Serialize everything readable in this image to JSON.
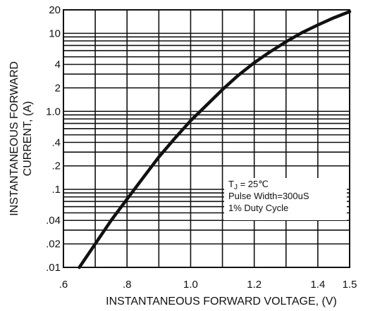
{
  "chart_data": {
    "type": "line",
    "xlabel": "INSTANTANEOUS FORWARD VOLTAGE, (V)",
    "ylabel_line1": "INSTANTANEOUS FORWARD",
    "ylabel_line2": "CURRENT, (A)",
    "xlim": [
      0.6,
      1.5
    ],
    "ylim": [
      0.01,
      20
    ],
    "yscale": "log",
    "grid": true,
    "x_ticks": [
      {
        "value": 0.6,
        "label": ".6"
      },
      {
        "value": 0.8,
        "label": ".8"
      },
      {
        "value": 1.0,
        "label": "1.0"
      },
      {
        "value": 1.2,
        "label": "1.2"
      },
      {
        "value": 1.4,
        "label": "1.4"
      },
      {
        "value": 1.5,
        "label": "1.5"
      }
    ],
    "y_ticks": [
      {
        "value": 20,
        "label": "20"
      },
      {
        "value": 10,
        "label": "10"
      },
      {
        "value": 4,
        "label": "4"
      },
      {
        "value": 2,
        "label": "2"
      },
      {
        "value": 1.0,
        "label": "1.0"
      },
      {
        "value": 0.4,
        "label": ".4"
      },
      {
        "value": 0.2,
        "label": ".2"
      },
      {
        "value": 0.1,
        "label": ".1"
      },
      {
        "value": 0.04,
        "label": ".04"
      },
      {
        "value": 0.02,
        "label": ".02"
      },
      {
        "value": 0.01,
        "label": ".01"
      }
    ],
    "x_gridlines": [
      0.7,
      0.8,
      0.9,
      1.0,
      1.1,
      1.2,
      1.3,
      1.4
    ],
    "y_gridlines": [
      0.02,
      0.03,
      0.04,
      0.05,
      0.06,
      0.07,
      0.08,
      0.09,
      0.1,
      0.2,
      0.3,
      0.4,
      0.5,
      0.6,
      0.7,
      0.8,
      0.9,
      1,
      2,
      3,
      4,
      5,
      6,
      7,
      8,
      9,
      10
    ],
    "series": [
      {
        "x": [
          0.65,
          0.7,
          0.75,
          0.8,
          0.85,
          0.9,
          0.95,
          1.0,
          1.05,
          1.1,
          1.15,
          1.2,
          1.25,
          1.3,
          1.35,
          1.4,
          1.45,
          1.5
        ],
        "y": [
          0.01,
          0.02,
          0.04,
          0.075,
          0.14,
          0.26,
          0.45,
          0.76,
          1.2,
          1.9,
          2.9,
          4.2,
          5.8,
          7.8,
          10.2,
          12.8,
          15.8,
          19
        ]
      }
    ],
    "annotation": {
      "line1_main": "T",
      "line1_sub": "J",
      "line1_rest": " = 25℃",
      "line2": "Pulse Width=300uS",
      "line3": "1% Duty Cycle"
    }
  }
}
